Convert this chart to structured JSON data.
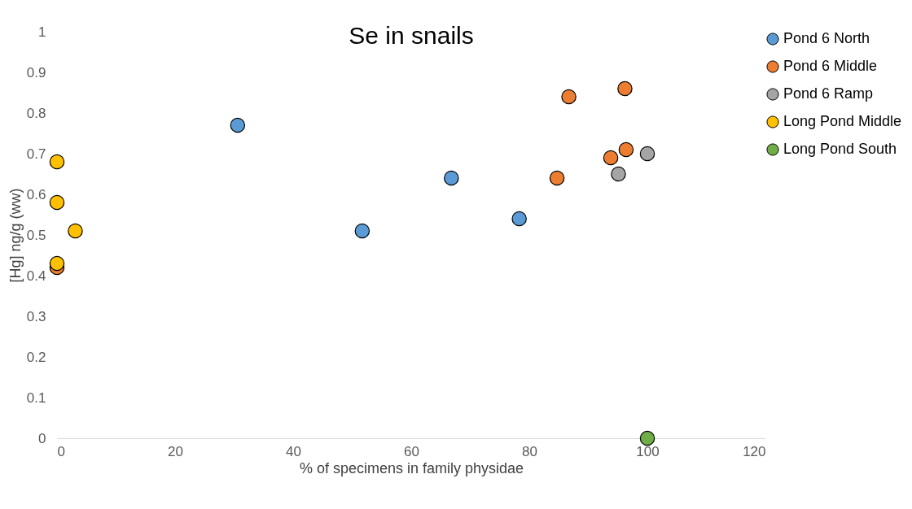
{
  "chart_data": {
    "type": "scatter",
    "title": "Se in snails",
    "xlabel": "% of specimens in family physidae",
    "ylabel": "[Hg] ng/g (ww)",
    "xlim": [
      0,
      120
    ],
    "xticks": [
      0,
      20,
      40,
      60,
      80,
      100,
      120
    ],
    "ylim": [
      0,
      1
    ],
    "yticks": [
      0,
      0.1,
      0.2,
      0.3,
      0.4,
      0.5,
      0.6,
      0.7,
      0.8,
      0.9,
      1
    ],
    "grid": false,
    "legend": "right",
    "marker": "circle",
    "series": [
      {
        "name": "Pond 6 North",
        "color": "#5b9bd5",
        "x": [
          30.6,
          51.7,
          66.8,
          78.3
        ],
        "values": [
          0.77,
          0.51,
          0.64,
          0.54
        ]
      },
      {
        "name": "Pond 6 Middle",
        "color": "#ed7d31",
        "x": [
          86.7,
          96.2,
          84.7,
          93.8,
          96.4,
          0
        ],
        "values": [
          0.84,
          0.86,
          0.64,
          0.69,
          0.71,
          0.42
        ]
      },
      {
        "name": "Pond 6 Ramp",
        "color": "#a5a5a5",
        "x": [
          95.1,
          100
        ],
        "values": [
          0.65,
          0.7
        ]
      },
      {
        "name": "Long Pond Middle",
        "color": "#ffc000",
        "x": [
          0,
          0,
          3.1,
          0
        ],
        "values": [
          0.68,
          0.58,
          0.51,
          0.43
        ]
      },
      {
        "name": "Long Pond South",
        "color": "#70ad47",
        "x": [
          100
        ],
        "values": [
          0
        ]
      }
    ]
  }
}
